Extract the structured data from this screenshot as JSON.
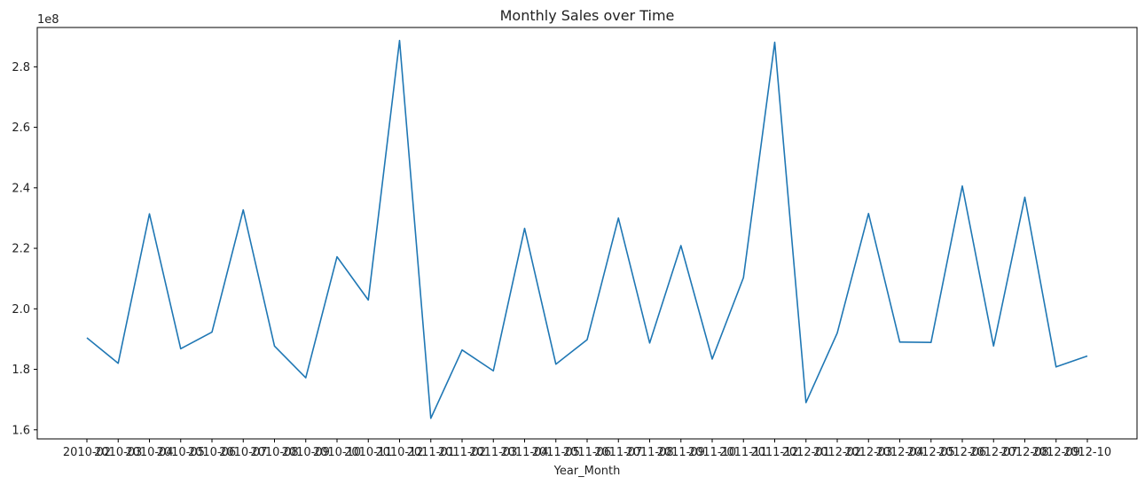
{
  "chart_data": {
    "type": "line",
    "title": "Monthly Sales over Time",
    "xlabel": "Year_Month",
    "ylabel": "",
    "y_offset_label": "1e8",
    "ylim": [
      1.57,
      2.93
    ],
    "yticks": [
      1.6,
      1.8,
      2.0,
      2.2,
      2.4,
      2.6,
      2.8
    ],
    "ytick_labels": [
      "1.6",
      "1.8",
      "2.0",
      "2.2",
      "2.4",
      "2.6",
      "2.8"
    ],
    "grid": false,
    "line_color": "#1f77b4",
    "categories": [
      "2010-02",
      "2010-03",
      "2010-04",
      "2010-05",
      "2010-06",
      "2010-07",
      "2010-08",
      "2010-09",
      "2010-10",
      "2010-11",
      "2010-12",
      "2011-01",
      "2011-02",
      "2011-03",
      "2011-04",
      "2011-05",
      "2011-06",
      "2011-07",
      "2011-08",
      "2011-09",
      "2011-10",
      "2011-11",
      "2011-12",
      "2012-01",
      "2012-02",
      "2012-03",
      "2012-04",
      "2012-05",
      "2012-06",
      "2012-07",
      "2012-08",
      "2012-09",
      "2012-10"
    ],
    "series": [
      {
        "values": [
          1.904,
          1.82,
          2.314,
          1.868,
          1.923,
          2.327,
          1.877,
          1.772,
          2.172,
          2.029,
          2.887,
          1.638,
          1.864,
          1.795,
          2.266,
          1.817,
          1.898,
          2.3,
          1.887,
          2.209,
          1.834,
          2.103,
          2.881,
          1.69,
          1.92,
          2.315,
          1.89,
          1.889,
          2.406,
          1.877,
          2.369,
          1.808,
          1.844
        ]
      }
    ]
  }
}
